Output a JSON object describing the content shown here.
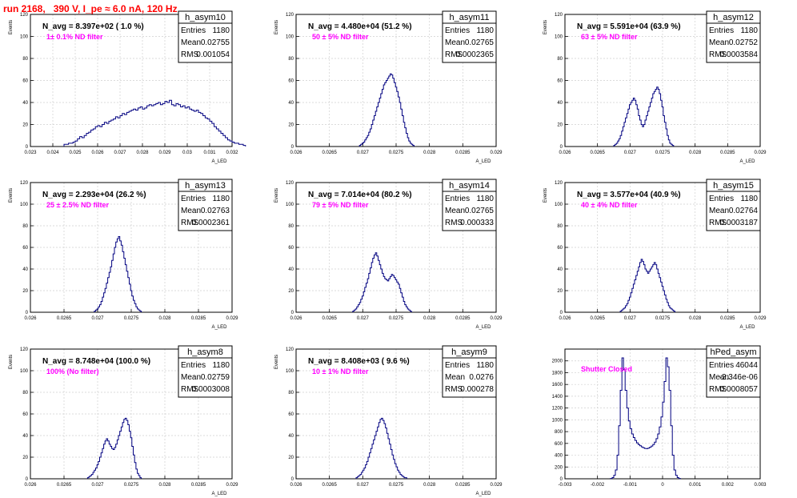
{
  "page_title": "run 2168,   390 V, I_pe ≈ 6.0 nA, 120 Hz",
  "colors": {
    "histogram_line": "#000080",
    "annotation_magenta": "#ff00ff",
    "title_red": "#ff0000",
    "grid": "#d0d0d0",
    "frame": "#000000"
  },
  "stats_labels": {
    "entries": "Entries",
    "mean": "Mean",
    "rms": "RMS"
  },
  "chart_data": [
    {
      "type": "histogram",
      "title": "h_asym10",
      "header": "N_avg = 8.397e+02 ( 1.0 %)",
      "note": "1± 0.1% ND filter",
      "stats": {
        "entries": "1180",
        "mean": "0.02755",
        "rms": "0.001054"
      },
      "ylabel": "Events",
      "xlabel": "A_LED",
      "xlim": [
        0.023,
        0.032
      ],
      "ylim": [
        0,
        120
      ],
      "xticks": [
        "0.023",
        "0.024",
        "0.025",
        "0.026",
        "0.027",
        "0.028",
        "0.029",
        "0.03",
        "0.031",
        "0.032"
      ],
      "yticks": [
        "0",
        "20",
        "40",
        "60",
        "80",
        "100",
        "120"
      ],
      "grid": true,
      "bins": {
        "start": 0.0245,
        "width": 0.0001,
        "counts": [
          2,
          2,
          3,
          3,
          4,
          5,
          7,
          9,
          8,
          10,
          12,
          13,
          15,
          16,
          18,
          19,
          18,
          20,
          22,
          21,
          23,
          24,
          25,
          27,
          26,
          28,
          30,
          29,
          31,
          32,
          33,
          34,
          33,
          35,
          36,
          34,
          35,
          37,
          38,
          37,
          38,
          39,
          40,
          38,
          39,
          41,
          40,
          42,
          38,
          37,
          39,
          38,
          36,
          37,
          35,
          36,
          34,
          33,
          32,
          33,
          31,
          30,
          28,
          26,
          25,
          23,
          21,
          18,
          16,
          14,
          12,
          10,
          8,
          6,
          5,
          4,
          3,
          3,
          2,
          2,
          1
        ]
      }
    },
    {
      "type": "histogram",
      "title": "h_asym11",
      "header": "N_avg = 4.480e+04 (51.2 %)",
      "note": "50 ± 5% ND filter",
      "stats": {
        "entries": "1180",
        "mean": "0.02765",
        "rms": "0.0002365"
      },
      "ylabel": "Events",
      "xlabel": "A_LED",
      "xlim": [
        0.026,
        0.029
      ],
      "ylim": [
        0,
        120
      ],
      "xticks": [
        "0.026",
        "0.0265",
        "0.027",
        "0.0275",
        "0.028",
        "0.0285",
        "0.029"
      ],
      "yticks": [
        "0",
        "20",
        "40",
        "60",
        "80",
        "100",
        "120"
      ],
      "grid": true,
      "bins": {
        "start": 0.02695,
        "width": 2e-05,
        "counts": [
          1,
          2,
          3,
          4,
          6,
          8,
          10,
          13,
          16,
          20,
          24,
          28,
          32,
          36,
          40,
          44,
          48,
          52,
          56,
          58,
          60,
          62,
          64,
          66,
          65,
          62,
          58,
          54,
          50,
          45,
          40,
          34,
          28,
          22,
          17,
          12,
          8,
          5,
          3,
          2,
          1
        ]
      }
    },
    {
      "type": "histogram",
      "title": "h_asym12",
      "header": "N_avg = 5.591e+04 (63.9 %)",
      "note": "63 ± 5% ND filter",
      "stats": {
        "entries": "1180",
        "mean": "0.02752",
        "rms": "0.0003584"
      },
      "ylabel": "Events",
      "xlabel": "A_LED",
      "xlim": [
        0.026,
        0.029
      ],
      "ylim": [
        0,
        120
      ],
      "xticks": [
        "0.026",
        "0.0265",
        "0.027",
        "0.0275",
        "0.028",
        "0.0285",
        "0.029"
      ],
      "yticks": [
        "0",
        "20",
        "40",
        "60",
        "80",
        "100",
        "120"
      ],
      "grid": true,
      "bins": {
        "start": 0.02675,
        "width": 2e-05,
        "counts": [
          1,
          2,
          3,
          5,
          7,
          10,
          14,
          18,
          22,
          26,
          30,
          34,
          38,
          40,
          42,
          44,
          42,
          38,
          34,
          28,
          24,
          20,
          18,
          20,
          24,
          28,
          32,
          36,
          40,
          44,
          48,
          50,
          52,
          54,
          52,
          48,
          42,
          36,
          28,
          22,
          16,
          10,
          6,
          3,
          2,
          1
        ]
      }
    },
    {
      "type": "histogram",
      "title": "h_asym13",
      "header": "N_avg = 2.293e+04 (26.2 %)",
      "note": "25 ± 2.5% ND filter",
      "stats": {
        "entries": "1180",
        "mean": "0.02763",
        "rms": "0.0002361"
      },
      "ylabel": "Events",
      "xlabel": "A_LED",
      "xlim": [
        0.026,
        0.029
      ],
      "ylim": [
        0,
        120
      ],
      "xticks": [
        "0.026",
        "0.0265",
        "0.027",
        "0.0275",
        "0.028",
        "0.0285",
        "0.029"
      ],
      "yticks": [
        "0",
        "20",
        "40",
        "60",
        "80",
        "100",
        "120"
      ],
      "grid": true,
      "bins": {
        "start": 0.02695,
        "width": 2e-05,
        "counts": [
          1,
          2,
          3,
          5,
          7,
          10,
          14,
          18,
          22,
          27,
          32,
          37,
          42,
          48,
          54,
          60,
          65,
          68,
          70,
          66,
          62,
          56,
          50,
          44,
          38,
          32,
          26,
          20,
          15,
          11,
          8,
          5,
          3,
          2,
          1
        ]
      }
    },
    {
      "type": "histogram",
      "title": "h_asym14",
      "header": "N_avg = 7.014e+04 (80.2 %)",
      "note": "79 ± 5% ND filter",
      "stats": {
        "entries": "1180",
        "mean": "0.02765",
        "rms": "0.000333"
      },
      "ylabel": "Events",
      "xlabel": "A_LED",
      "xlim": [
        0.026,
        0.029
      ],
      "ylim": [
        0,
        120
      ],
      "xticks": [
        "0.026",
        "0.0265",
        "0.027",
        "0.0275",
        "0.028",
        "0.0285",
        "0.029"
      ],
      "yticks": [
        "0",
        "20",
        "40",
        "60",
        "80",
        "100",
        "120"
      ],
      "grid": true,
      "bins": {
        "start": 0.02685,
        "width": 2e-05,
        "counts": [
          1,
          2,
          3,
          5,
          7,
          9,
          12,
          15,
          19,
          23,
          27,
          31,
          36,
          41,
          46,
          50,
          53,
          55,
          52,
          48,
          44,
          40,
          36,
          33,
          31,
          30,
          29,
          31,
          33,
          35,
          34,
          32,
          30,
          28,
          26,
          22,
          18,
          14,
          10,
          7,
          5,
          3,
          2,
          1
        ]
      }
    },
    {
      "type": "histogram",
      "title": "h_asym15",
      "header": "N_avg = 3.577e+04 (40.9 %)",
      "note": "40 ± 4% ND filter",
      "stats": {
        "entries": "1180",
        "mean": "0.02764",
        "rms": "0.0003187"
      },
      "ylabel": "Events",
      "xlabel": "A_LED",
      "xlim": [
        0.026,
        0.029
      ],
      "ylim": [
        0,
        120
      ],
      "xticks": [
        "0.026",
        "0.0265",
        "0.027",
        "0.0275",
        "0.028",
        "0.0285",
        "0.029"
      ],
      "yticks": [
        "0",
        "20",
        "40",
        "60",
        "80",
        "100",
        "120"
      ],
      "grid": true,
      "bins": {
        "start": 0.02685,
        "width": 2e-05,
        "counts": [
          1,
          2,
          3,
          4,
          6,
          8,
          11,
          14,
          18,
          22,
          26,
          30,
          34,
          38,
          42,
          46,
          49,
          47,
          44,
          40,
          38,
          36,
          38,
          40,
          42,
          44,
          46,
          44,
          40,
          36,
          32,
          28,
          24,
          20,
          16,
          12,
          9,
          6,
          4,
          3,
          2,
          1
        ]
      }
    },
    {
      "type": "histogram",
      "title": "h_asym8",
      "header": "N_avg = 8.748e+04 (100.0 %)",
      "note": "100% (No filter)",
      "stats": {
        "entries": "1180",
        "mean": "0.02759",
        "rms": "0.0003008"
      },
      "ylabel": "Events",
      "xlabel": "A_LED",
      "xlim": [
        0.026,
        0.029
      ],
      "ylim": [
        0,
        120
      ],
      "xticks": [
        "0.026",
        "0.0265",
        "0.027",
        "0.0275",
        "0.028",
        "0.0285",
        "0.029"
      ],
      "yticks": [
        "0",
        "20",
        "40",
        "60",
        "80",
        "100",
        "120"
      ],
      "grid": true,
      "bins": {
        "start": 0.02685,
        "width": 2e-05,
        "counts": [
          1,
          2,
          3,
          4,
          6,
          8,
          10,
          13,
          16,
          20,
          24,
          28,
          32,
          35,
          37,
          35,
          32,
          30,
          28,
          27,
          29,
          32,
          36,
          40,
          44,
          48,
          52,
          55,
          56,
          54,
          50,
          44,
          38,
          30,
          22,
          15,
          9,
          5,
          3,
          1
        ]
      }
    },
    {
      "type": "histogram",
      "title": "h_asym9",
      "header": "N_avg = 8.408e+03 ( 9.6 %)",
      "note": "10 ± 1% ND filter",
      "stats": {
        "entries": "1180",
        "mean": "0.0276",
        "rms": "0.000278"
      },
      "ylabel": "Events",
      "xlabel": "A_LED",
      "xlim": [
        0.026,
        0.029
      ],
      "ylim": [
        0,
        120
      ],
      "xticks": [
        "0.026",
        "0.0265",
        "0.027",
        "0.0275",
        "0.028",
        "0.0285",
        "0.029"
      ],
      "yticks": [
        "0",
        "20",
        "40",
        "60",
        "80",
        "100",
        "120"
      ],
      "grid": true,
      "bins": {
        "start": 0.0269,
        "width": 2e-05,
        "counts": [
          1,
          2,
          3,
          4,
          6,
          8,
          10,
          13,
          16,
          20,
          24,
          28,
          32,
          36,
          40,
          44,
          48,
          52,
          55,
          56,
          54,
          51,
          47,
          42,
          37,
          32,
          27,
          22,
          18,
          14,
          11,
          8,
          6,
          4,
          3,
          2,
          1,
          1
        ]
      }
    },
    {
      "type": "histogram",
      "title": "hPed_asym",
      "header": "",
      "note": "Shutter Closed",
      "stats": {
        "entries": "46044",
        "mean": "-2.346e-06",
        "rms": "0.0008057"
      },
      "ylabel": "",
      "xlabel": "",
      "xlim": [
        -0.003,
        0.003
      ],
      "ylim": [
        0,
        2200
      ],
      "xticks": [
        "-0.003",
        "-0.002",
        "-0.001",
        "0",
        "0.001",
        "0.002",
        "0.003"
      ],
      "yticks": [
        "0",
        "200",
        "400",
        "600",
        "800",
        "1000",
        "1200",
        "1400",
        "1600",
        "1800",
        "2000"
      ],
      "grid": true,
      "bins": {
        "start": -0.0016,
        "width": 5e-05,
        "counts": [
          5,
          20,
          60,
          150,
          400,
          900,
          1500,
          2050,
          1850,
          1500,
          1200,
          980,
          850,
          760,
          700,
          650,
          610,
          580,
          560,
          540,
          525,
          515,
          510,
          520,
          535,
          555,
          580,
          620,
          680,
          760,
          880,
          1050,
          1300,
          1650,
          2050,
          1900,
          1500,
          900,
          400,
          150,
          60,
          20,
          5
        ]
      }
    }
  ]
}
